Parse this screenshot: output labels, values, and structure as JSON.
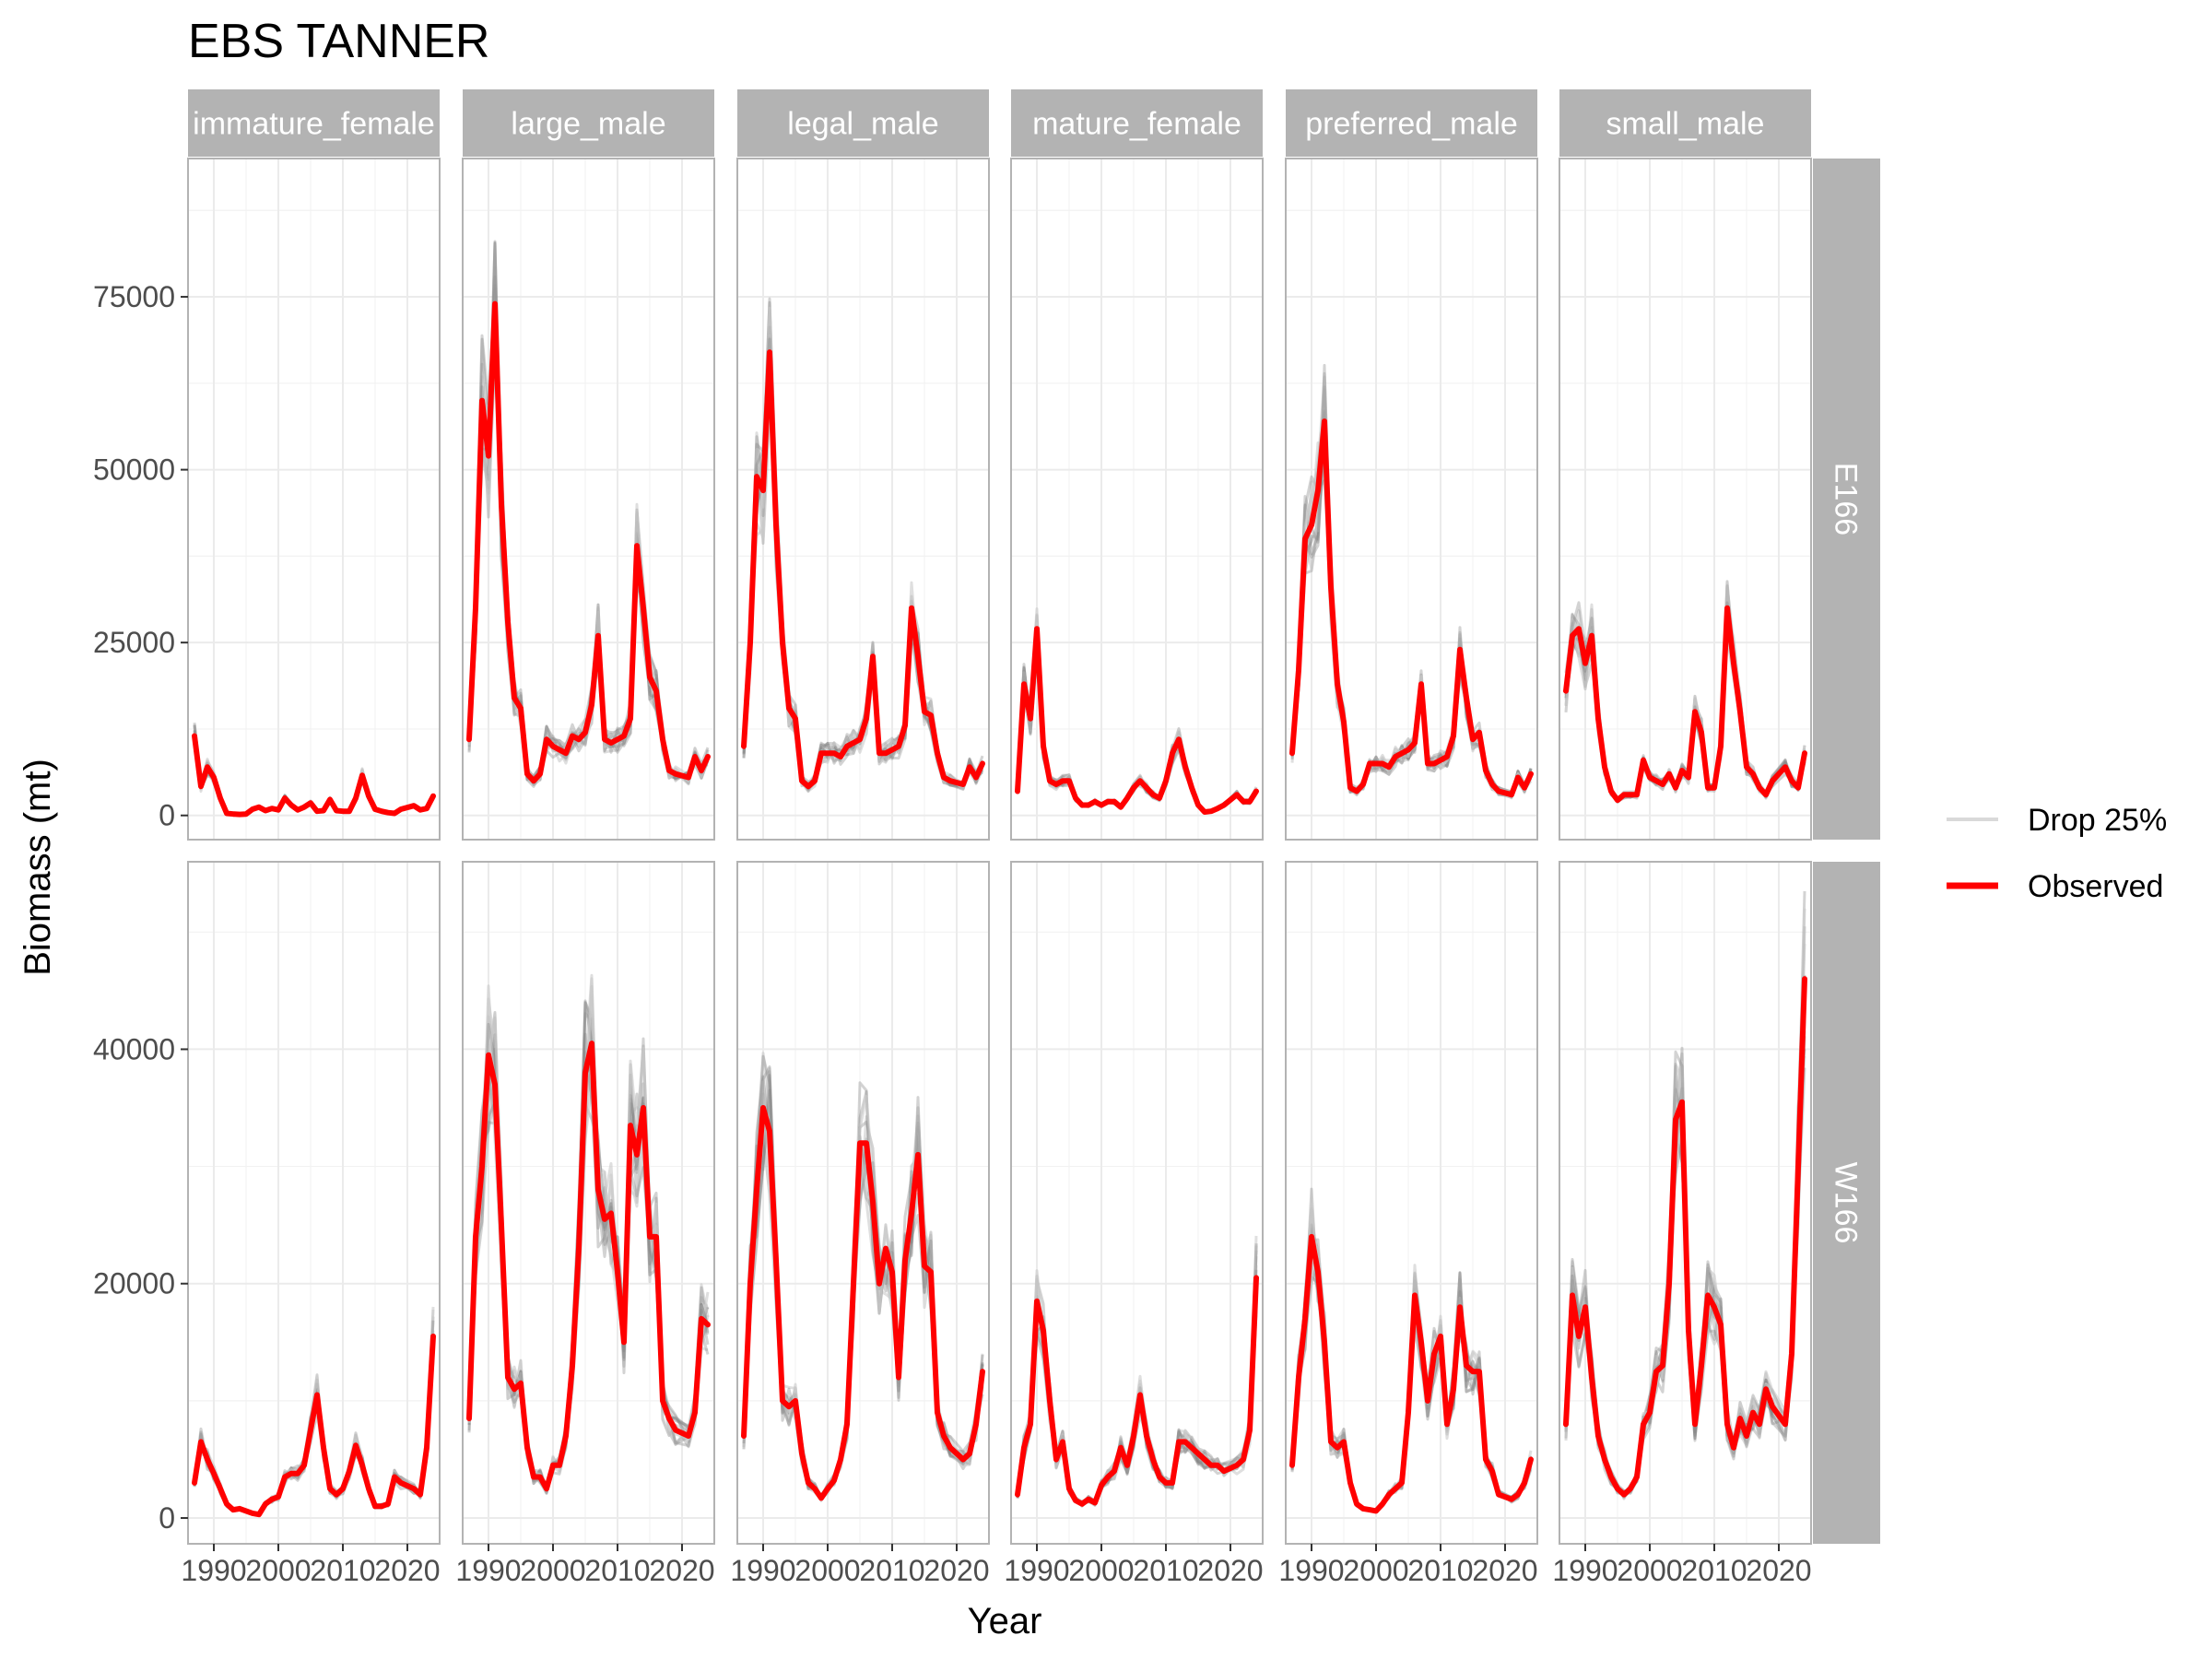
{
  "chart_data": {
    "type": "line",
    "title": "EBS TANNER",
    "xlabel": "Year",
    "ylabel": "Biomass (mt)",
    "x_ticks": [
      1990,
      2000,
      2010,
      2020
    ],
    "x_range": [
      1986,
      2025
    ],
    "grid": true,
    "legend_position": "right",
    "legend": [
      {
        "label": "Drop 25%",
        "color": "#d9d9d9"
      },
      {
        "label": "Observed",
        "color": "#ff0000"
      }
    ],
    "columns": [
      "immature_female",
      "large_male",
      "legal_male",
      "mature_female",
      "preferred_male",
      "small_male"
    ],
    "rows": [
      {
        "label": "E166",
        "ylim": [
          -3500,
          95000
        ],
        "y_ticks": [
          0,
          25000,
          50000,
          75000
        ]
      },
      {
        "label": "W166",
        "ylim": [
          -2200,
          56000
        ],
        "y_ticks": [
          0,
          20000,
          40000
        ]
      }
    ],
    "colors": {
      "observed": "#ff0000",
      "drop": "#808080",
      "strip": "#b3b3b3",
      "grid": "#ebebeb",
      "panel_border": "#b3b3b3"
    },
    "panels": [
      {
        "row": "E166",
        "col": "immature_female",
        "years": [
          1987,
          1988,
          1989,
          1990,
          1991,
          1992,
          1993,
          1994,
          1995,
          1996,
          1997,
          1998,
          1999,
          2000,
          2001,
          2002,
          2003,
          2004,
          2005,
          2006,
          2007,
          2008,
          2009,
          2010,
          2011,
          2012,
          2013,
          2014,
          2015,
          2016,
          2017,
          2018,
          2019,
          2021,
          2022,
          2023,
          2024
        ],
        "observed": [
          11500,
          4200,
          7000,
          5500,
          2500,
          300,
          200,
          150,
          200,
          900,
          1200,
          700,
          1000,
          800,
          2500,
          1500,
          800,
          1200,
          1800,
          600,
          700,
          2300,
          700,
          600,
          600,
          2500,
          5800,
          2800,
          900,
          600,
          400,
          300,
          900,
          1400,
          800,
          1000,
          2800
        ]
      },
      {
        "row": "E166",
        "col": "large_male",
        "years": [
          1987,
          1988,
          1989,
          1990,
          1991,
          1992,
          1993,
          1994,
          1995,
          1996,
          1997,
          1998,
          1999,
          2000,
          2001,
          2002,
          2003,
          2004,
          2005,
          2006,
          2007,
          2008,
          2009,
          2010,
          2011,
          2012,
          2013,
          2014,
          2015,
          2016,
          2017,
          2018,
          2019,
          2021,
          2022,
          2023,
          2024
        ],
        "observed": [
          11000,
          30000,
          60000,
          52000,
          74000,
          45000,
          28000,
          17000,
          15500,
          6000,
          5000,
          6000,
          11000,
          10000,
          9500,
          9000,
          11500,
          11000,
          12000,
          16000,
          26000,
          11000,
          10500,
          11000,
          11500,
          14000,
          39000,
          30000,
          20000,
          18000,
          11000,
          6500,
          6000,
          5500,
          8500,
          6500,
          8500
        ]
      },
      {
        "row": "E166",
        "col": "legal_male",
        "years": [
          1987,
          1988,
          1989,
          1990,
          1991,
          1992,
          1993,
          1994,
          1995,
          1996,
          1997,
          1998,
          1999,
          2000,
          2001,
          2002,
          2003,
          2004,
          2005,
          2006,
          2007,
          2008,
          2009,
          2010,
          2011,
          2012,
          2013,
          2014,
          2015,
          2016,
          2017,
          2018,
          2019,
          2021,
          2022,
          2023,
          2024
        ],
        "observed": [
          10000,
          25000,
          49000,
          47000,
          67000,
          42000,
          25000,
          15500,
          14000,
          5000,
          4200,
          5000,
          9000,
          9000,
          9000,
          8500,
          10000,
          10500,
          11000,
          14000,
          23000,
          9000,
          9000,
          9500,
          10000,
          13000,
          30000,
          23000,
          15000,
          14500,
          9000,
          5500,
          5000,
          4500,
          7000,
          5500,
          7500
        ]
      },
      {
        "row": "E166",
        "col": "mature_female",
        "years": [
          1987,
          1988,
          1989,
          1990,
          1991,
          1992,
          1993,
          1994,
          1995,
          1996,
          1997,
          1998,
          1999,
          2000,
          2001,
          2002,
          2003,
          2004,
          2005,
          2006,
          2007,
          2008,
          2009,
          2010,
          2011,
          2012,
          2013,
          2014,
          2015,
          2016,
          2017,
          2018,
          2019,
          2021,
          2022,
          2023,
          2024
        ],
        "observed": [
          3500,
          19000,
          14000,
          27000,
          10000,
          5000,
          4500,
          5000,
          5000,
          2500,
          1500,
          1500,
          2000,
          1500,
          2000,
          2000,
          1200,
          2500,
          4000,
          5000,
          4000,
          3000,
          2500,
          5000,
          9000,
          11000,
          7000,
          4000,
          1500,
          500,
          600,
          1000,
          1500,
          3000,
          2000,
          2000,
          3500
        ]
      },
      {
        "row": "E166",
        "col": "preferred_male",
        "years": [
          1987,
          1988,
          1989,
          1990,
          1991,
          1992,
          1993,
          1994,
          1995,
          1996,
          1997,
          1998,
          1999,
          2000,
          2001,
          2002,
          2003,
          2004,
          2005,
          2006,
          2007,
          2008,
          2009,
          2010,
          2011,
          2012,
          2013,
          2014,
          2015,
          2016,
          2017,
          2018,
          2019,
          2021,
          2022,
          2023,
          2024
        ],
        "observed": [
          9000,
          21000,
          40000,
          42000,
          47000,
          57000,
          33000,
          19000,
          13500,
          4000,
          3500,
          4500,
          7500,
          7500,
          7500,
          7000,
          8500,
          9000,
          9500,
          10500,
          19000,
          7500,
          7500,
          8000,
          8500,
          11500,
          24000,
          17000,
          11000,
          12000,
          6500,
          4500,
          3500,
          3000,
          5500,
          4000,
          6000
        ]
      },
      {
        "row": "E166",
        "col": "small_male",
        "years": [
          1987,
          1988,
          1989,
          1990,
          1991,
          1992,
          1993,
          1994,
          1995,
          1996,
          1997,
          1998,
          1999,
          2000,
          2001,
          2002,
          2003,
          2004,
          2005,
          2006,
          2007,
          2008,
          2009,
          2010,
          2011,
          2012,
          2013,
          2014,
          2015,
          2016,
          2017,
          2018,
          2019,
          2021,
          2022,
          2023,
          2024
        ],
        "observed": [
          18000,
          26000,
          27000,
          22000,
          26000,
          14000,
          7000,
          3500,
          2200,
          3000,
          3000,
          3000,
          8000,
          5500,
          5000,
          4500,
          6000,
          4000,
          6500,
          5500,
          15000,
          12000,
          4000,
          4000,
          10000,
          30000,
          22000,
          15000,
          7000,
          6000,
          4000,
          3000,
          5000,
          7000,
          5000,
          4000,
          9000
        ]
      },
      {
        "row": "W166",
        "col": "immature_female",
        "years": [
          1987,
          1988,
          1989,
          1990,
          1991,
          1992,
          1993,
          1994,
          1995,
          1996,
          1997,
          1998,
          1999,
          2000,
          2001,
          2002,
          2003,
          2004,
          2005,
          2006,
          2007,
          2008,
          2009,
          2010,
          2011,
          2012,
          2013,
          2014,
          2015,
          2016,
          2017,
          2018,
          2019,
          2021,
          2022,
          2023,
          2024
        ],
        "observed": [
          3000,
          6500,
          5000,
          3800,
          2500,
          1200,
          700,
          800,
          600,
          400,
          300,
          1200,
          1600,
          1800,
          3500,
          3800,
          3800,
          4500,
          7500,
          10500,
          6000,
          2500,
          2000,
          2500,
          4000,
          6200,
          4500,
          2500,
          1000,
          1000,
          1200,
          3500,
          3000,
          2500,
          2000,
          6000,
          15500
        ]
      },
      {
        "row": "W166",
        "col": "large_male",
        "years": [
          1987,
          1988,
          1989,
          1990,
          1991,
          1992,
          1993,
          1994,
          1995,
          1996,
          1997,
          1998,
          1999,
          2000,
          2001,
          2002,
          2003,
          2004,
          2005,
          2006,
          2007,
          2008,
          2009,
          2010,
          2011,
          2012,
          2013,
          2014,
          2015,
          2016,
          2017,
          2018,
          2019,
          2021,
          2022,
          2023,
          2024
        ],
        "observed": [
          8500,
          24000,
          30000,
          39500,
          37000,
          25000,
          12000,
          11000,
          11500,
          6000,
          3500,
          3500,
          2500,
          4500,
          4500,
          7000,
          13000,
          23000,
          38000,
          40500,
          28000,
          25500,
          26000,
          21000,
          15000,
          33500,
          31000,
          35000,
          24000,
          24000,
          10000,
          8500,
          7500,
          7000,
          9000,
          17000,
          16500
        ]
      },
      {
        "row": "W166",
        "col": "legal_male",
        "years": [
          1987,
          1988,
          1989,
          1990,
          1991,
          1992,
          1993,
          1994,
          1995,
          1996,
          1997,
          1998,
          1999,
          2000,
          2001,
          2002,
          2003,
          2004,
          2005,
          2006,
          2007,
          2008,
          2009,
          2010,
          2011,
          2012,
          2013,
          2014,
          2015,
          2016,
          2017,
          2018,
          2019,
          2021,
          2022,
          2023,
          2024
        ],
        "observed": [
          7000,
          20000,
          28000,
          35000,
          33000,
          22000,
          10000,
          9500,
          10000,
          5500,
          3000,
          2500,
          1700,
          2500,
          3200,
          5000,
          8000,
          20000,
          32000,
          32000,
          27000,
          20000,
          23000,
          21000,
          12000,
          22000,
          26000,
          31000,
          21500,
          21000,
          9000,
          7000,
          6000,
          5000,
          5500,
          8000,
          12500
        ]
      },
      {
        "row": "W166",
        "col": "mature_female",
        "years": [
          1987,
          1988,
          1989,
          1990,
          1991,
          1992,
          1993,
          1994,
          1995,
          1996,
          1997,
          1998,
          1999,
          2000,
          2001,
          2002,
          2003,
          2004,
          2005,
          2006,
          2007,
          2008,
          2009,
          2010,
          2011,
          2012,
          2013,
          2014,
          2015,
          2016,
          2017,
          2018,
          2019,
          2021,
          2022,
          2023,
          2024
        ],
        "observed": [
          2000,
          6000,
          8000,
          18500,
          16000,
          10000,
          5000,
          6500,
          2500,
          1500,
          1200,
          1600,
          1300,
          2800,
          3500,
          4000,
          6000,
          4500,
          7000,
          10500,
          7000,
          5000,
          3500,
          3000,
          3000,
          6500,
          6500,
          6000,
          5500,
          5000,
          4500,
          4500,
          4000,
          4500,
          5000,
          7500,
          20500
        ]
      },
      {
        "row": "W166",
        "col": "preferred_male",
        "years": [
          1987,
          1988,
          1989,
          1990,
          1991,
          1992,
          1993,
          1994,
          1995,
          1996,
          1997,
          1998,
          1999,
          2000,
          2001,
          2002,
          2003,
          2004,
          2005,
          2006,
          2007,
          2008,
          2009,
          2010,
          2011,
          2012,
          2013,
          2014,
          2015,
          2016,
          2017,
          2018,
          2019,
          2021,
          2022,
          2023,
          2024
        ],
        "observed": [
          4500,
          12000,
          17000,
          24000,
          21000,
          15000,
          6500,
          6000,
          6500,
          3000,
          1200,
          800,
          700,
          600,
          1200,
          2000,
          2500,
          3000,
          9000,
          19000,
          15000,
          10000,
          14000,
          15500,
          8000,
          11000,
          18000,
          13000,
          12500,
          12500,
          5000,
          4000,
          2000,
          1600,
          2000,
          3000,
          5000
        ]
      },
      {
        "row": "W166",
        "col": "small_male",
        "years": [
          1987,
          1988,
          1989,
          1990,
          1991,
          1992,
          1993,
          1994,
          1995,
          1996,
          1997,
          1998,
          1999,
          2000,
          2001,
          2002,
          2003,
          2004,
          2005,
          2006,
          2007,
          2008,
          2009,
          2010,
          2011,
          2012,
          2013,
          2014,
          2015,
          2016,
          2017,
          2018,
          2019,
          2021,
          2022,
          2023,
          2024
        ],
        "observed": [
          8000,
          19000,
          15500,
          18000,
          12000,
          7000,
          5000,
          3500,
          2500,
          2000,
          2500,
          3500,
          8000,
          9000,
          12500,
          13000,
          20000,
          34000,
          35500,
          16000,
          8000,
          13000,
          19000,
          18000,
          16500,
          8000,
          6000,
          8500,
          7000,
          9000,
          8000,
          11000,
          9500,
          8000,
          14000,
          30000,
          46000
        ]
      }
    ]
  }
}
